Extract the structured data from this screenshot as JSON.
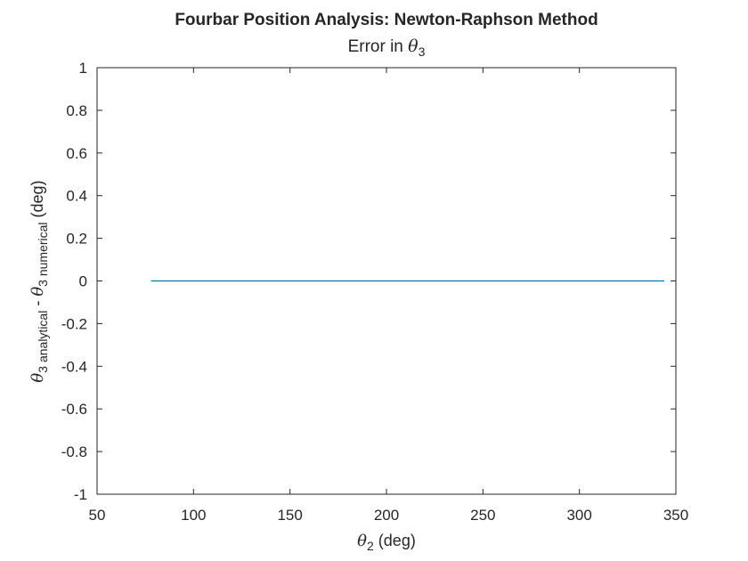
{
  "chart_data": {
    "type": "line",
    "title": "Fourbar Position Analysis: Newton-Raphson Method",
    "subtitle": {
      "prefix": "Error in ",
      "symbol": "θ",
      "sub": "3"
    },
    "xlabel": {
      "symbol": "θ",
      "sub": "2",
      "suffix": " (deg)"
    },
    "ylabel": {
      "sym1": "θ",
      "sub1": "3 analytical",
      "mid": " - ",
      "sym2": "θ",
      "sub2": "3 numerical",
      "suffix": " (deg)"
    },
    "xlim": [
      50,
      350
    ],
    "ylim": [
      -1,
      1
    ],
    "xticks": [
      50,
      100,
      150,
      200,
      250,
      300,
      350
    ],
    "yticks": [
      -1,
      -0.8,
      -0.6,
      -0.4,
      -0.2,
      0,
      0.2,
      0.4,
      0.6,
      0.8,
      1
    ],
    "grid": false,
    "series": [
      {
        "color": "#0072bd",
        "x": [
          78,
          344
        ],
        "y": [
          0,
          0
        ]
      }
    ]
  }
}
